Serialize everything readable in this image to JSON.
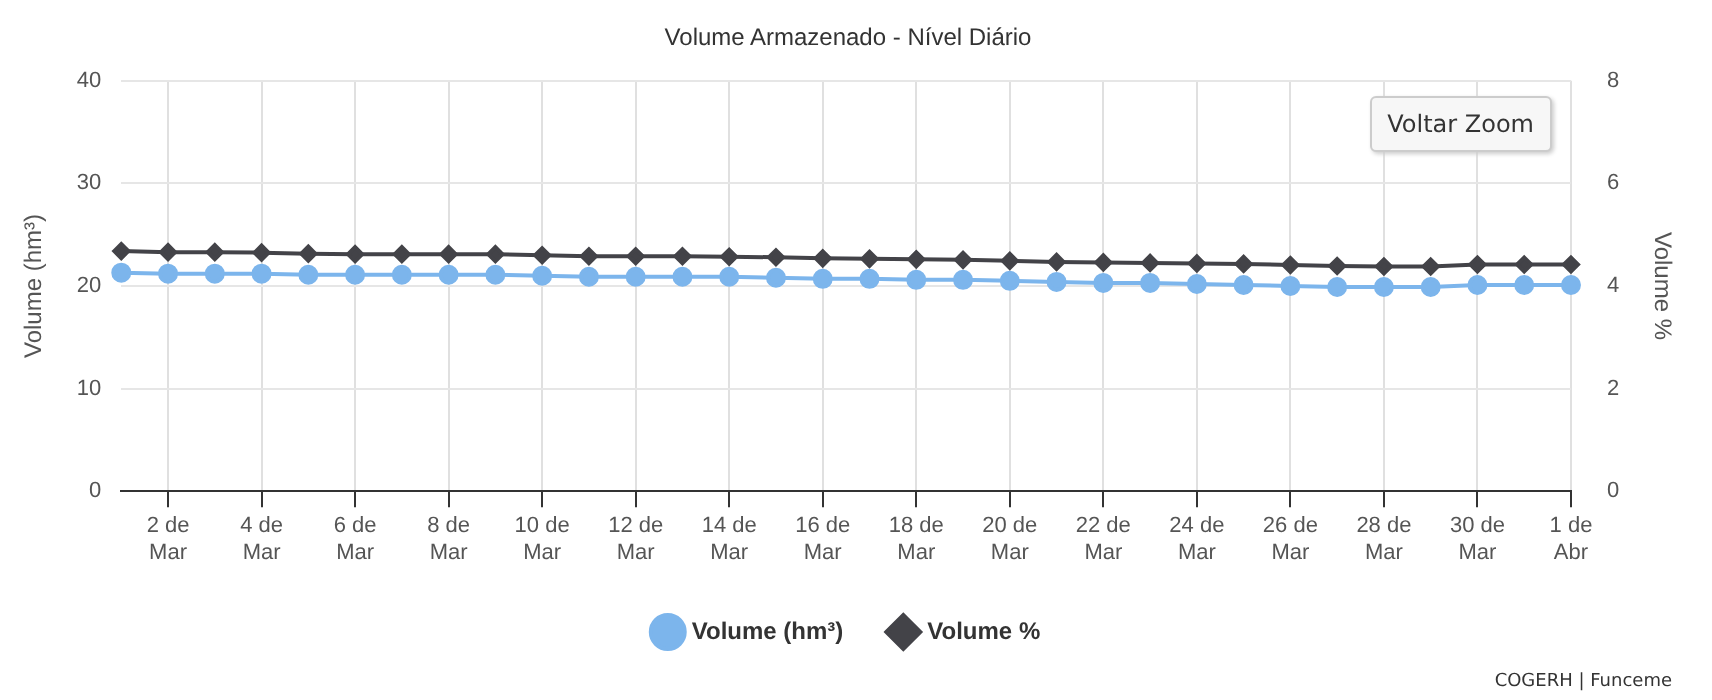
{
  "chart_data": {
    "type": "line",
    "title": "Volume Armazenado - Nível Diário",
    "categories": [
      null,
      "2 de Mar",
      null,
      "4 de Mar",
      null,
      "6 de Mar",
      null,
      "8 de Mar",
      null,
      "10 de Mar",
      null,
      "12 de Mar",
      null,
      "14 de Mar",
      null,
      "16 de Mar",
      null,
      "18 de Mar",
      null,
      "20 de Mar",
      null,
      "22 de Mar",
      null,
      "24 de Mar",
      null,
      "26 de Mar",
      null,
      "28 de Mar",
      null,
      "30 de Mar",
      null,
      "1 de Abr"
    ],
    "series": [
      {
        "name": "Volume (hm³)",
        "color": "#7cb5ec",
        "marker": "circle",
        "values": [
          21.3,
          21.2,
          21.2,
          21.2,
          21.1,
          21.1,
          21.1,
          21.1,
          21.1,
          21.0,
          20.9,
          20.9,
          20.9,
          20.9,
          20.8,
          20.7,
          20.7,
          20.6,
          20.6,
          20.5,
          20.4,
          20.3,
          20.3,
          20.2,
          20.1,
          20.0,
          19.9,
          19.9,
          19.9,
          20.1,
          20.1,
          20.1
        ]
      },
      {
        "name": "Volume %",
        "color": "#434348",
        "marker": "diamond",
        "axis": "y2",
        "values": [
          4.68,
          4.66,
          4.66,
          4.65,
          4.63,
          4.62,
          4.62,
          4.62,
          4.62,
          4.6,
          4.58,
          4.58,
          4.58,
          4.57,
          4.56,
          4.54,
          4.53,
          4.52,
          4.51,
          4.49,
          4.47,
          4.46,
          4.45,
          4.44,
          4.43,
          4.41,
          4.39,
          4.38,
          4.38,
          4.42,
          4.42,
          4.42
        ]
      }
    ],
    "ylabel": "Volume (hm³)",
    "y2label": "Volume %",
    "ylim": [
      0,
      40
    ],
    "yticks": [
      0,
      10,
      20,
      30,
      40
    ],
    "y2lim": [
      0,
      8
    ],
    "y2ticks": [
      0,
      2,
      4,
      6,
      8
    ],
    "grid": true,
    "legend": "bottom",
    "annotations": [
      "Voltar Zoom",
      "COGERH | Funceme"
    ]
  }
}
